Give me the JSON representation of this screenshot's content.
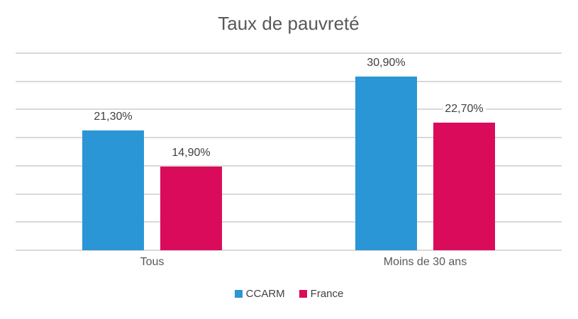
{
  "chart_data": {
    "type": "bar",
    "title": "Taux de pauvreté",
    "categories": [
      "Tous",
      "Moins de 30 ans"
    ],
    "series": [
      {
        "name": "CCARM",
        "color": "#2A96D5",
        "values": [
          21.3,
          30.9
        ],
        "labels": [
          "21,30%",
          "30,90%"
        ]
      },
      {
        "name": "France",
        "color": "#DA0B5B",
        "values": [
          14.9,
          22.7
        ],
        "labels": [
          "14,90%",
          "22,70%"
        ]
      }
    ],
    "ylim": [
      0,
      35
    ],
    "ytick_step": 5,
    "grid": true,
    "gridline_color": "#D9D9D9",
    "y_axis_labels_visible": false,
    "legend_position": "bottom",
    "xlabel": "",
    "ylabel": ""
  }
}
